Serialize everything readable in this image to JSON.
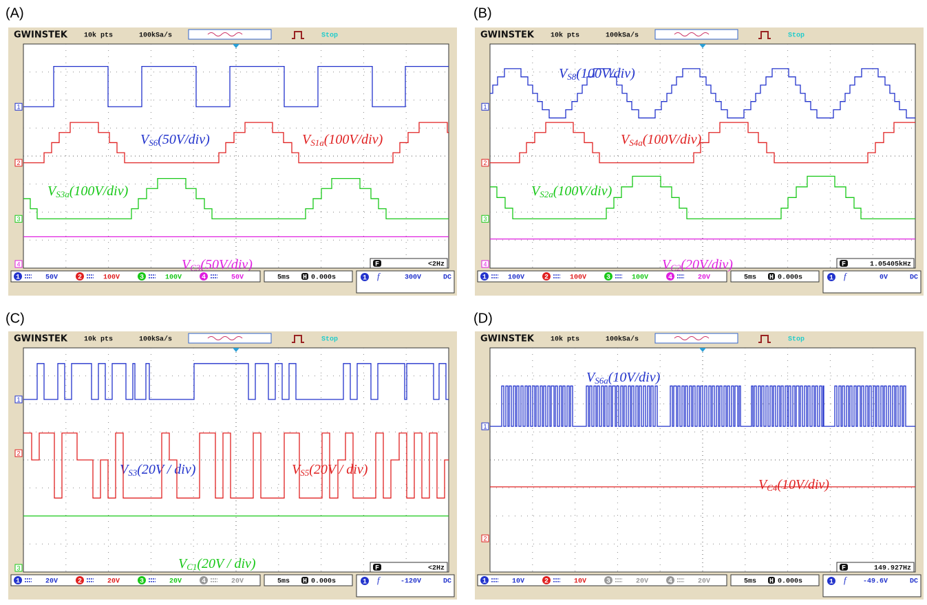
{
  "panels": [
    {
      "label": "(A)",
      "header": {
        "brand": "GWINSTEK",
        "points": "10k pts",
        "rate": "100kSa/s",
        "status": "Stop"
      },
      "channels": [
        {
          "number": "1",
          "color": "#2233cc",
          "scale": "50V",
          "active": true
        },
        {
          "number": "2",
          "color": "#e02020",
          "scale": "100V",
          "active": true
        },
        {
          "number": "3",
          "color": "#18c818",
          "scale": "100V",
          "active": true
        },
        {
          "number": "4",
          "color": "#e020e0",
          "scale": "50V",
          "active": true
        }
      ],
      "markers": [
        "1",
        "2",
        "3",
        "4"
      ],
      "traces": [
        {
          "symbol": "V",
          "sub": "S6",
          "scale": "(50V/div)",
          "color": "#2233cc"
        },
        {
          "symbol": "V",
          "sub": "S1a",
          "scale": "(100V/div)",
          "color": "#e02020"
        },
        {
          "symbol": "V",
          "sub": "S3a",
          "scale": "(100V/div)",
          "color": "#18c818"
        },
        {
          "symbol": "V",
          "sub": "C3",
          "scale": "(50V/div)",
          "color": "#e020e0"
        }
      ],
      "timebase": "5ms",
      "delay_icon": "H",
      "delay": "0.000s",
      "trigger": {
        "channel": "1",
        "slope_icon": "f",
        "level": "300V",
        "coupling": "DC"
      },
      "frequency": {
        "icon": "F",
        "value": "<2Hz"
      }
    },
    {
      "label": "(B)",
      "header": {
        "brand": "GWINSTEK",
        "points": "10k pts",
        "rate": "100kSa/s",
        "status": "Stop"
      },
      "channels": [
        {
          "number": "1",
          "color": "#2233cc",
          "scale": "100V",
          "active": true
        },
        {
          "number": "2",
          "color": "#e02020",
          "scale": "100V",
          "active": true
        },
        {
          "number": "3",
          "color": "#18c818",
          "scale": "100V",
          "active": true
        },
        {
          "number": "4",
          "color": "#e020e0",
          "scale": "20V",
          "active": true
        }
      ],
      "markers": [
        "1",
        "2",
        "3",
        "4"
      ],
      "traces": [
        {
          "symbol": "V",
          "sub": "S8",
          "scale": "(100V/div)",
          "color": "#2233cc"
        },
        {
          "symbol": "V",
          "sub": "S4a",
          "scale": "(100V/div)",
          "color": "#e02020"
        },
        {
          "symbol": "V",
          "sub": "S2a",
          "scale": "(100V/div)",
          "color": "#18c818"
        },
        {
          "symbol": "V",
          "sub": "C2",
          "scale": "(20V/div)",
          "color": "#e020e0"
        }
      ],
      "timebase": "5ms",
      "delay_icon": "H",
      "delay": "0.000s",
      "trigger": {
        "channel": "1",
        "slope_icon": "f",
        "level": "0V",
        "coupling": "DC"
      },
      "frequency": {
        "icon": "F",
        "value": "1.05405kHz"
      }
    },
    {
      "label": "(C)",
      "header": {
        "brand": "GWINSTEK",
        "points": "10k pts",
        "rate": "100kSa/s",
        "status": "Stop"
      },
      "channels": [
        {
          "number": "1",
          "color": "#2233cc",
          "scale": "20V",
          "active": true
        },
        {
          "number": "2",
          "color": "#e02020",
          "scale": "20V",
          "active": true
        },
        {
          "number": "3",
          "color": "#18c818",
          "scale": "20V",
          "active": true
        },
        {
          "number": "4",
          "color": "#999999",
          "scale": "20V",
          "active": false
        }
      ],
      "markers": [
        "1",
        "2",
        "3"
      ],
      "traces": [
        {
          "symbol": "V",
          "sub": "S3",
          "scale": "(20V / div)",
          "color": "#2233cc"
        },
        {
          "symbol": "V",
          "sub": "S5",
          "scale": "(20V / div)",
          "color": "#e02020"
        },
        {
          "symbol": "V",
          "sub": "C1",
          "scale": "(20V / div)",
          "color": "#18c818"
        }
      ],
      "timebase": "5ms",
      "delay_icon": "H",
      "delay": "0.000s",
      "trigger": {
        "channel": "1",
        "slope_icon": "f",
        "level": "-120V",
        "coupling": "DC"
      },
      "frequency": {
        "icon": "F",
        "value": "<2Hz"
      }
    },
    {
      "label": "(D)",
      "header": {
        "brand": "GWINSTEK",
        "points": "10k pts",
        "rate": "100kSa/s",
        "status": "Stop"
      },
      "channels": [
        {
          "number": "1",
          "color": "#2233cc",
          "scale": "10V",
          "active": true
        },
        {
          "number": "2",
          "color": "#e02020",
          "scale": "10V",
          "active": true
        },
        {
          "number": "3",
          "color": "#999999",
          "scale": "20V",
          "active": false
        },
        {
          "number": "4",
          "color": "#999999",
          "scale": "20V",
          "active": false
        }
      ],
      "markers": [
        "1",
        "2"
      ],
      "traces": [
        {
          "symbol": "V",
          "sub": "S6a",
          "scale": "(10V/div)",
          "color": "#2233cc"
        },
        {
          "symbol": "V",
          "sub": "C4",
          "scale": "(10V/div)",
          "color": "#e02020"
        }
      ],
      "timebase": "5ms",
      "delay_icon": "H",
      "delay": "0.000s",
      "trigger": {
        "channel": "1",
        "slope_icon": "f",
        "level": "-49.6V",
        "coupling": "DC"
      },
      "frequency": {
        "icon": "F",
        "value": "149.927Hz"
      }
    }
  ]
}
